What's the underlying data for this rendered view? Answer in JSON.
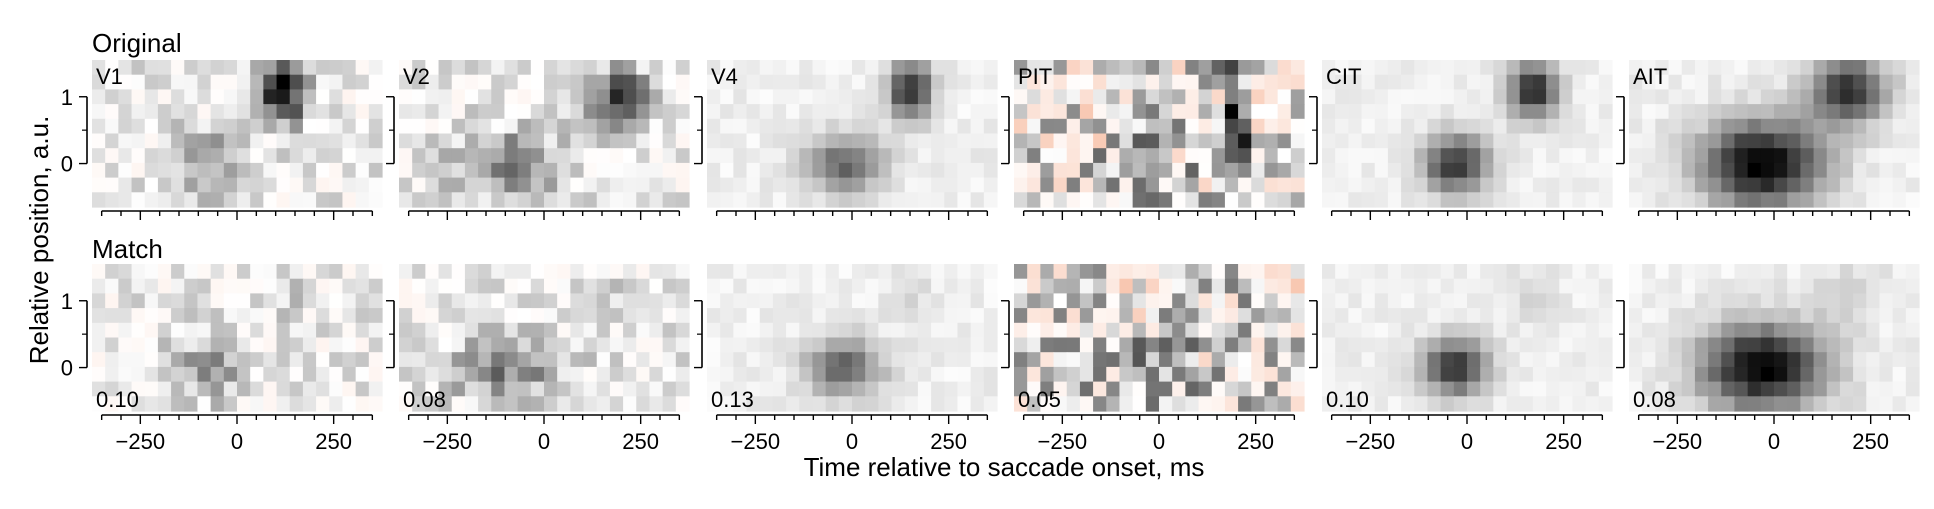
{
  "chart_data": {
    "type": "heatmap",
    "ylabel": "Relative position, a.u.",
    "xlabel": "Time relative to saccade onset, ms",
    "rows": [
      {
        "title": "Original"
      },
      {
        "title": "Match"
      }
    ],
    "panels": [
      "V1",
      "V2",
      "V4",
      "PIT",
      "CIT",
      "AIT"
    ],
    "x_range": [
      -375,
      375
    ],
    "y_range": [
      -0.65,
      1.55
    ],
    "x_ticks": [
      -250,
      0,
      250
    ],
    "x_tick_labels": [
      "−250",
      "0",
      "250"
    ],
    "y_ticks": [
      0,
      1
    ],
    "y_tick_labels": [
      "0",
      "1"
    ],
    "match_values": [
      "0.10",
      "0.08",
      "0.13",
      "0.05",
      "0.10",
      "0.08"
    ],
    "colormap": {
      "negative": "#f4a582",
      "zero": "#ffffff",
      "positive": "#000000"
    },
    "grid": false
  }
}
